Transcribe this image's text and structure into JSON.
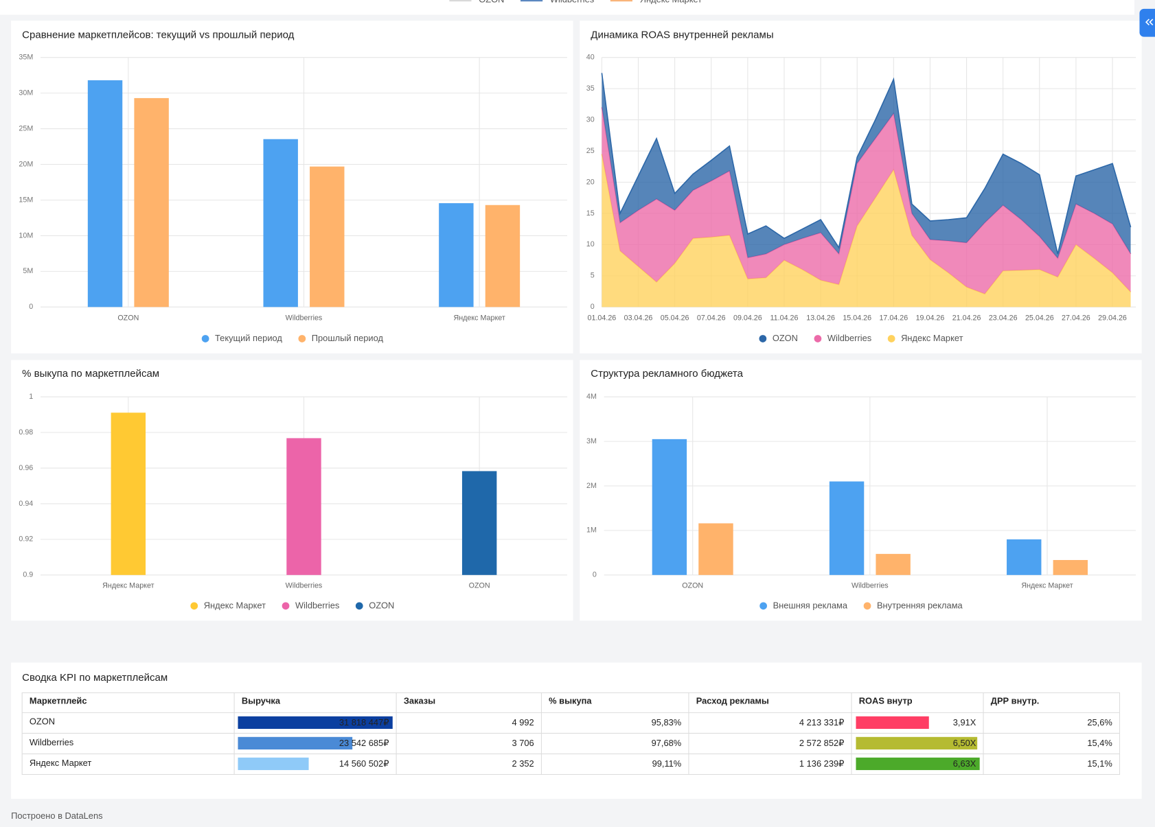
{
  "top_legend": {
    "items": [
      {
        "name": "OZON",
        "color": "#d9d9d9"
      },
      {
        "name": "Wildberries",
        "color": "#5b87c0"
      },
      {
        "name": "Яндекс Маркет",
        "color": "#f9b47a"
      }
    ]
  },
  "chart_data": [
    {
      "type": "bar",
      "title": "Сравнение маркетплейсов: текущий vs прошлый период",
      "categories": [
        "OZON",
        "Wildberries",
        "Яндекс Маркет"
      ],
      "series": [
        {
          "name": "Текущий период",
          "color": "#4da2f1",
          "values": [
            31800000,
            23542685,
            14560502
          ]
        },
        {
          "name": "Прошлый период",
          "color": "#ffb36b",
          "values": [
            29300000,
            19700000,
            14300000
          ]
        }
      ],
      "ylim": [
        0,
        35000000
      ],
      "yticks": [
        0,
        {
          "value": 5000000,
          "label": "5M"
        },
        {
          "value": 10000000,
          "label": "10M"
        },
        {
          "value": 15000000,
          "label": "15M"
        },
        {
          "value": 20000000,
          "label": "20M"
        },
        {
          "value": 25000000,
          "label": "25M"
        },
        {
          "value": 30000000,
          "label": "30M"
        },
        {
          "value": 35000000,
          "label": "35M"
        }
      ],
      "grid": true
    },
    {
      "type": "area",
      "title": "Динамика ROAS внутренней рекламы",
      "stacked": true,
      "categories": [
        "01.04.26",
        null,
        "03.04.26",
        null,
        "05.04.26",
        null,
        "07.04.26",
        null,
        "09.04.26",
        null,
        "11.04.26",
        null,
        "13.04.26",
        null,
        "15.04.26",
        null,
        "17.04.26",
        null,
        "19.04.26",
        null,
        "21.04.26",
        null,
        "23.04.26",
        null,
        "25.04.26",
        null,
        "27.04.26",
        null,
        "29.04.26",
        null
      ],
      "series": [
        {
          "name": "OZON",
          "color": "#2c67a8",
          "values": [
            5.5,
            1.5,
            5.5,
            9.7,
            2.7,
            2.6,
            3.3,
            4,
            3.8,
            4.5,
            1,
            1.5,
            2.1,
            1,
            1,
            3,
            5.5,
            1.5,
            3,
            3.4,
            4,
            5.5,
            8.2,
            9,
            9.9,
            0.7,
            4.5,
            7,
            9.7,
            4.3
          ]
        },
        {
          "name": "Wildberries",
          "color": "#ec6ba9",
          "values": [
            7.5,
            4.5,
            9,
            13.3,
            8.5,
            7.7,
            9,
            10.3,
            3.4,
            3.8,
            2.5,
            5,
            7.6,
            4.9,
            10,
            9.5,
            9,
            3.5,
            3.2,
            5.1,
            7.1,
            11.4,
            10.5,
            8.1,
            5.3,
            3,
            6.5,
            7.2,
            7.8,
            6.1
          ]
        },
        {
          "name": "Яндекс Маркет",
          "color": "#ffd25e",
          "values": [
            24.5,
            9,
            6.5,
            4,
            7,
            11,
            11.2,
            11.5,
            4.5,
            4.7,
            7.5,
            6,
            4.3,
            3.6,
            13,
            17.5,
            22,
            11.5,
            7.6,
            5.5,
            3.2,
            2.1,
            5.8,
            5.9,
            6,
            4.8,
            10,
            7.8,
            5.5,
            2.4
          ]
        }
      ],
      "ylim": [
        0,
        40
      ],
      "yticks": [
        0,
        5,
        10,
        15,
        20,
        25,
        30,
        35,
        40
      ],
      "grid": true
    },
    {
      "type": "bar",
      "title": "% выкупа по маркетплейсам",
      "categories": [
        "Яндекс Маркет",
        "Wildberries",
        "OZON"
      ],
      "values": [
        0.9911,
        0.9768,
        0.9583
      ],
      "colors": [
        "#ffc933",
        "#ec64a9",
        "#1f68aa"
      ],
      "ylim": [
        0.9,
        1
      ],
      "yticks": [
        0.9,
        0.92,
        0.94,
        0.96,
        0.98,
        1
      ],
      "grid": true
    },
    {
      "type": "bar",
      "title": "Структура рекламного бюджета",
      "categories": [
        "OZON",
        "Wildberries",
        "Яндекс Маркет"
      ],
      "series": [
        {
          "name": "Внешняя реклама",
          "color": "#4da2f1",
          "values": [
            3050000,
            2100000,
            800000
          ]
        },
        {
          "name": "Внутренняя реклама",
          "color": "#ffb36b",
          "values": [
            1160000,
            473000,
            336000
          ]
        }
      ],
      "ylim": [
        0,
        4000000
      ],
      "yticks": [
        0,
        {
          "value": 1000000,
          "label": "1M"
        },
        {
          "value": 2000000,
          "label": "2M"
        },
        {
          "value": 3000000,
          "label": "3M"
        },
        {
          "value": 4000000,
          "label": "4M"
        }
      ],
      "grid": true
    }
  ],
  "table": {
    "title": "Сводка KPI по маркетплейсам",
    "columns": [
      "Маркетплейс",
      "Выручка",
      "Заказы",
      "% выкупа",
      "Расход рекламы",
      "ROAS внутр",
      "ДРР внутр."
    ],
    "rows": [
      [
        "OZON",
        "31 818 447₽",
        "4 992",
        "95,83%",
        "4 213 331₽",
        "3,91X",
        "25,6%"
      ],
      [
        "Wildberries",
        "23 542 685₽",
        "3 706",
        "97,68%",
        "2 572 852₽",
        "6,50X",
        "15,4%"
      ],
      [
        "Яндекс Маркет",
        "14 560 502₽",
        "2 352",
        "99,11%",
        "1 136 239₽",
        "6,63X",
        "15,1%"
      ]
    ],
    "revenue_colors": [
      "#0b3fa0",
      "#4a8ad6",
      "#8fcaf8"
    ],
    "roas_colors": [
      "#ff3d64",
      "#b5bb32",
      "#4caa2a"
    ]
  },
  "footer": "Построено в DataLens"
}
